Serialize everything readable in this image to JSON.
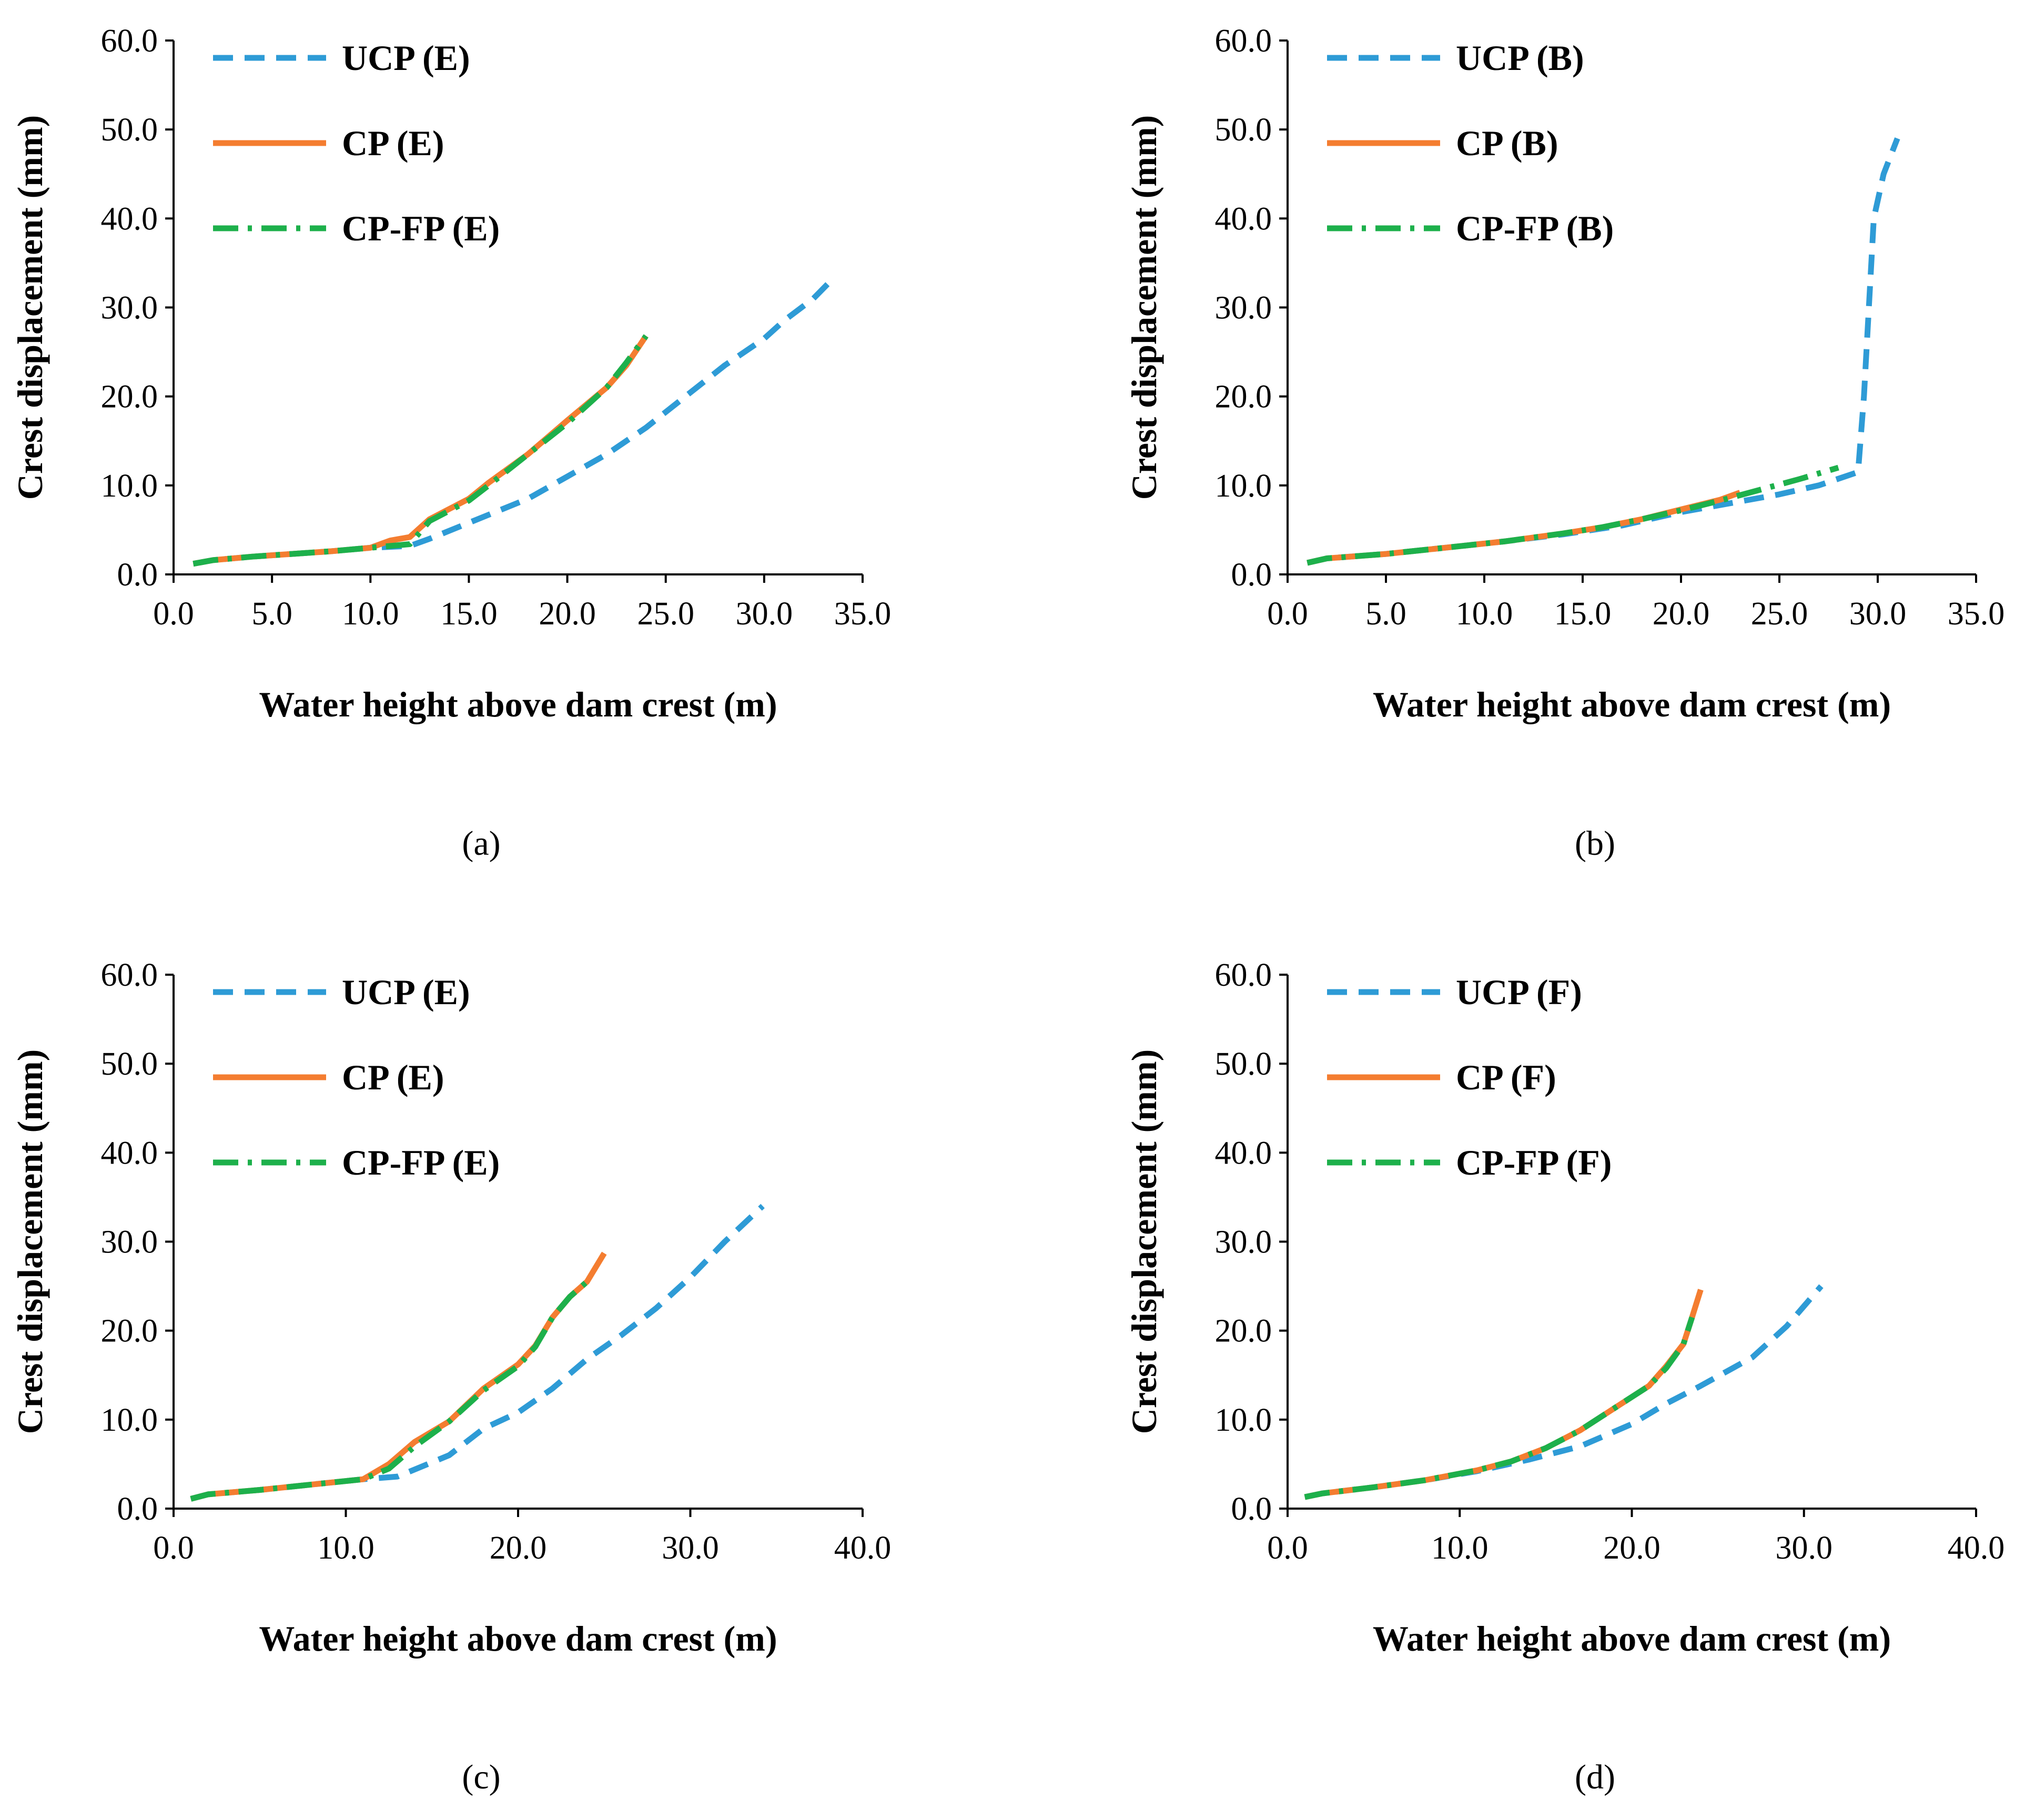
{
  "colors": {
    "ucp": "#2E9BD6",
    "cp": "#F47D30",
    "cpfp": "#1DB04B",
    "axis": "#000000"
  },
  "chart_data": [
    {
      "panel": "a",
      "caption": "(a)",
      "type": "line",
      "xlabel": "Water height above dam crest (m)",
      "ylabel": "Crest displacement (mm)",
      "xlim": [
        0,
        35
      ],
      "ylim": [
        0,
        60
      ],
      "xticks": [
        0,
        5,
        10,
        15,
        20,
        25,
        30,
        35
      ],
      "xtick_labels": [
        "0.0",
        "5.0",
        "10.0",
        "15.0",
        "20.0",
        "25.0",
        "30.0",
        "35.0"
      ],
      "yticks": [
        0,
        10,
        20,
        30,
        40,
        50,
        60
      ],
      "ytick_labels": [
        "0.0",
        "10.0",
        "20.0",
        "30.0",
        "40.0",
        "50.0",
        "60.0"
      ],
      "series": [
        {
          "name": "UCP (E)",
          "style": "dash",
          "color_key": "ucp",
          "points": [
            [
              1,
              1.2
            ],
            [
              2,
              1.6
            ],
            [
              4,
              2.0
            ],
            [
              6,
              2.3
            ],
            [
              8,
              2.6
            ],
            [
              10,
              3.0
            ],
            [
              12,
              3.2
            ],
            [
              13,
              4.0
            ],
            [
              15,
              5.8
            ],
            [
              18,
              8.5
            ],
            [
              20,
              11.0
            ],
            [
              22,
              13.5
            ],
            [
              24,
              16.5
            ],
            [
              26,
              20.0
            ],
            [
              28,
              23.5
            ],
            [
              30,
              26.5
            ],
            [
              31,
              28.5
            ],
            [
              32.5,
              31.0
            ],
            [
              33.3,
              32.8
            ]
          ]
        },
        {
          "name": "CP (E)",
          "style": "solid",
          "color_key": "cp",
          "points": [
            [
              1,
              1.2
            ],
            [
              2,
              1.6
            ],
            [
              4,
              2.0
            ],
            [
              6,
              2.3
            ],
            [
              8,
              2.6
            ],
            [
              10,
              3.0
            ],
            [
              11,
              3.8
            ],
            [
              12,
              4.2
            ],
            [
              13,
              6.2
            ],
            [
              15,
              8.5
            ],
            [
              16,
              10.3
            ],
            [
              18,
              13.5
            ],
            [
              20,
              17.3
            ],
            [
              22,
              21.0
            ],
            [
              23,
              23.5
            ],
            [
              24,
              26.8
            ]
          ]
        },
        {
          "name": "CP-FP (E)",
          "style": "dashdot",
          "color_key": "cpfp",
          "points": [
            [
              1,
              1.2
            ],
            [
              2,
              1.6
            ],
            [
              4,
              2.0
            ],
            [
              6,
              2.3
            ],
            [
              8,
              2.6
            ],
            [
              10,
              3.0
            ],
            [
              12,
              3.4
            ],
            [
              13,
              6.0
            ],
            [
              15,
              8.3
            ],
            [
              16,
              10.0
            ],
            [
              18,
              13.5
            ],
            [
              20,
              17.0
            ],
            [
              22,
              21.0
            ],
            [
              23,
              23.8
            ],
            [
              24,
              26.8
            ]
          ]
        }
      ]
    },
    {
      "panel": "b",
      "caption": "(b)",
      "type": "line",
      "xlabel": "Water height above dam crest (m)",
      "ylabel": "Crest displacement (mm)",
      "xlim": [
        0,
        35
      ],
      "ylim": [
        0,
        60
      ],
      "xticks": [
        0,
        5,
        10,
        15,
        20,
        25,
        30,
        35
      ],
      "xtick_labels": [
        "0.0",
        "5.0",
        "10.0",
        "15.0",
        "20.0",
        "25.0",
        "30.0",
        "35.0"
      ],
      "yticks": [
        0,
        10,
        20,
        30,
        40,
        50,
        60
      ],
      "ytick_labels": [
        "0.0",
        "10.0",
        "20.0",
        "30.0",
        "40.0",
        "50.0",
        "60.0"
      ],
      "series": [
        {
          "name": "UCP (B)",
          "style": "dash",
          "color_key": "ucp",
          "points": [
            [
              1,
              1.3
            ],
            [
              2,
              1.8
            ],
            [
              5,
              2.3
            ],
            [
              8,
              3.0
            ],
            [
              11,
              3.7
            ],
            [
              14,
              4.5
            ],
            [
              17,
              5.5
            ],
            [
              20,
              7.0
            ],
            [
              23,
              8.2
            ],
            [
              25,
              9.0
            ],
            [
              27,
              10.0
            ],
            [
              29,
              11.5
            ],
            [
              29.3,
              20.0
            ],
            [
              29.8,
              40.0
            ],
            [
              30.3,
              45.0
            ],
            [
              31,
              49.0
            ]
          ]
        },
        {
          "name": "CP (B)",
          "style": "solid",
          "color_key": "cp",
          "points": [
            [
              1,
              1.3
            ],
            [
              2,
              1.8
            ],
            [
              5,
              2.3
            ],
            [
              8,
              3.0
            ],
            [
              11,
              3.7
            ],
            [
              14,
              4.6
            ],
            [
              16,
              5.3
            ],
            [
              18,
              6.2
            ],
            [
              20,
              7.3
            ],
            [
              22,
              8.4
            ],
            [
              23,
              9.2
            ]
          ]
        },
        {
          "name": "CP-FP (B)",
          "style": "dashdot",
          "color_key": "cpfp",
          "points": [
            [
              1,
              1.3
            ],
            [
              2,
              1.8
            ],
            [
              5,
              2.3
            ],
            [
              8,
              3.0
            ],
            [
              11,
              3.7
            ],
            [
              14,
              4.6
            ],
            [
              16,
              5.3
            ],
            [
              18,
              6.2
            ],
            [
              20,
              7.2
            ],
            [
              22,
              8.3
            ],
            [
              24,
              9.5
            ],
            [
              26,
              10.7
            ],
            [
              28,
              12.0
            ]
          ]
        }
      ]
    },
    {
      "panel": "c",
      "caption": "(c)",
      "type": "line",
      "xlabel": "Water height above dam crest (m)",
      "ylabel": "Crest displacement (mm)",
      "xlim": [
        0,
        40
      ],
      "ylim": [
        0,
        60
      ],
      "xticks": [
        0,
        10,
        20,
        30,
        40
      ],
      "xtick_labels": [
        "0.0",
        "10.0",
        "20.0",
        "30.0",
        "40.0"
      ],
      "yticks": [
        0,
        10,
        20,
        30,
        40,
        50,
        60
      ],
      "ytick_labels": [
        "0.0",
        "10.0",
        "20.0",
        "30.0",
        "40.0",
        "50.0",
        "60.0"
      ],
      "series": [
        {
          "name": "UCP (E)",
          "style": "dash",
          "color_key": "ucp",
          "points": [
            [
              1,
              1.1
            ],
            [
              2,
              1.6
            ],
            [
              5,
              2.1
            ],
            [
              8,
              2.7
            ],
            [
              11,
              3.3
            ],
            [
              13,
              3.6
            ],
            [
              16,
              6.0
            ],
            [
              18,
              9.0
            ],
            [
              20,
              10.8
            ],
            [
              22,
              13.5
            ],
            [
              24,
              16.8
            ],
            [
              26,
              19.5
            ],
            [
              28,
              22.5
            ],
            [
              30,
              26.0
            ],
            [
              32,
              30.0
            ],
            [
              34.2,
              34.0
            ]
          ]
        },
        {
          "name": "CP (E)",
          "style": "solid",
          "color_key": "cp",
          "points": [
            [
              1,
              1.1
            ],
            [
              2,
              1.6
            ],
            [
              5,
              2.1
            ],
            [
              8,
              2.7
            ],
            [
              11,
              3.3
            ],
            [
              12.5,
              5.0
            ],
            [
              14,
              7.5
            ],
            [
              16,
              9.8
            ],
            [
              18,
              13.5
            ],
            [
              20,
              16.2
            ],
            [
              21,
              18.3
            ],
            [
              22,
              21.5
            ],
            [
              23,
              23.8
            ],
            [
              24,
              25.5
            ],
            [
              25,
              28.7
            ]
          ]
        },
        {
          "name": "CP-FP (E)",
          "style": "dashdot",
          "color_key": "cpfp",
          "points": [
            [
              1,
              1.1
            ],
            [
              2,
              1.6
            ],
            [
              5,
              2.1
            ],
            [
              8,
              2.7
            ],
            [
              11,
              3.3
            ],
            [
              12.5,
              4.5
            ],
            [
              14,
              7.0
            ],
            [
              16,
              9.8
            ],
            [
              18,
              13.3
            ],
            [
              20,
              16.0
            ],
            [
              21,
              18.2
            ],
            [
              22,
              21.5
            ],
            [
              23,
              23.8
            ],
            [
              24,
              25.5
            ]
          ]
        }
      ]
    },
    {
      "panel": "d",
      "caption": "(d)",
      "type": "line",
      "xlabel": "Water height above dam crest (m)",
      "ylabel": "Crest displacement (mm)",
      "xlim": [
        0,
        40
      ],
      "ylim": [
        0,
        60
      ],
      "xticks": [
        0,
        10,
        20,
        30,
        40
      ],
      "xtick_labels": [
        "0.0",
        "10.0",
        "20.0",
        "30.0",
        "40.0"
      ],
      "yticks": [
        0,
        10,
        20,
        30,
        40,
        50,
        60
      ],
      "ytick_labels": [
        "0.0",
        "10.0",
        "20.0",
        "30.0",
        "40.0",
        "50.0",
        "60.0"
      ],
      "series": [
        {
          "name": "UCP (F)",
          "style": "dash",
          "color_key": "ucp",
          "points": [
            [
              1,
              1.3
            ],
            [
              2,
              1.7
            ],
            [
              5,
              2.4
            ],
            [
              8,
              3.2
            ],
            [
              11,
              4.2
            ],
            [
              14,
              5.5
            ],
            [
              17,
              7.0
            ],
            [
              20,
              9.5
            ],
            [
              22,
              11.8
            ],
            [
              24,
              13.8
            ],
            [
              27,
              17.0
            ],
            [
              29,
              20.5
            ],
            [
              31,
              25.0
            ]
          ]
        },
        {
          "name": "CP (F)",
          "style": "solid",
          "color_key": "cp",
          "points": [
            [
              1,
              1.3
            ],
            [
              2,
              1.7
            ],
            [
              5,
              2.4
            ],
            [
              8,
              3.2
            ],
            [
              11,
              4.3
            ],
            [
              13,
              5.3
            ],
            [
              15,
              6.8
            ],
            [
              17,
              8.8
            ],
            [
              19,
              11.3
            ],
            [
              21,
              13.8
            ],
            [
              22,
              16.0
            ],
            [
              23,
              18.5
            ],
            [
              23.5,
              21.5
            ],
            [
              24,
              24.6
            ]
          ]
        },
        {
          "name": "CP-FP (F)",
          "style": "dashdot",
          "color_key": "cpfp",
          "points": [
            [
              1,
              1.3
            ],
            [
              2,
              1.7
            ],
            [
              5,
              2.4
            ],
            [
              8,
              3.2
            ],
            [
              11,
              4.3
            ],
            [
              13,
              5.3
            ],
            [
              15,
              6.8
            ],
            [
              17,
              8.8
            ],
            [
              19,
              11.3
            ],
            [
              21,
              13.8
            ],
            [
              22,
              15.8
            ],
            [
              23,
              18.5
            ],
            [
              23.5,
              21.5
            ]
          ]
        }
      ]
    }
  ]
}
